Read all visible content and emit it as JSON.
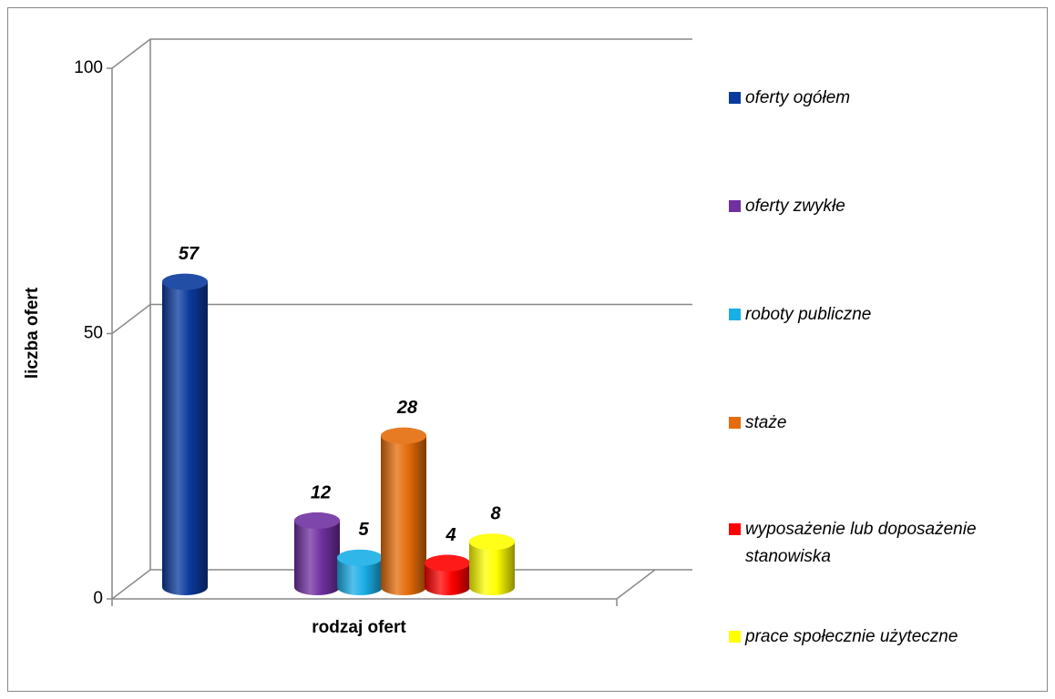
{
  "chart_data": {
    "type": "bar3d",
    "x_label": "rodzaj ofert",
    "y_label": "liczba ofert",
    "ylim": [
      0,
      100
    ],
    "yticks": [
      0,
      50,
      100
    ],
    "grid": true,
    "legend": "right",
    "series": [
      {
        "name": "oferty ogółem",
        "color": "#0b3a9c",
        "values": [
          57
        ]
      },
      {
        "name": "oferty zwykłe",
        "color": "#7030a0",
        "values": [
          12
        ]
      },
      {
        "name": "roboty publiczne",
        "color": "#1aaee6",
        "values": [
          5
        ]
      },
      {
        "name": "staże",
        "color": "#e46c0a",
        "values": [
          28
        ]
      },
      {
        "name": "wyposażenie lub doposażenie stanowiska",
        "color": "#ff0000",
        "values": [
          4
        ]
      },
      {
        "name": "prace społecznie użyteczne",
        "color": "#ffff00",
        "values": [
          8
        ]
      }
    ]
  }
}
